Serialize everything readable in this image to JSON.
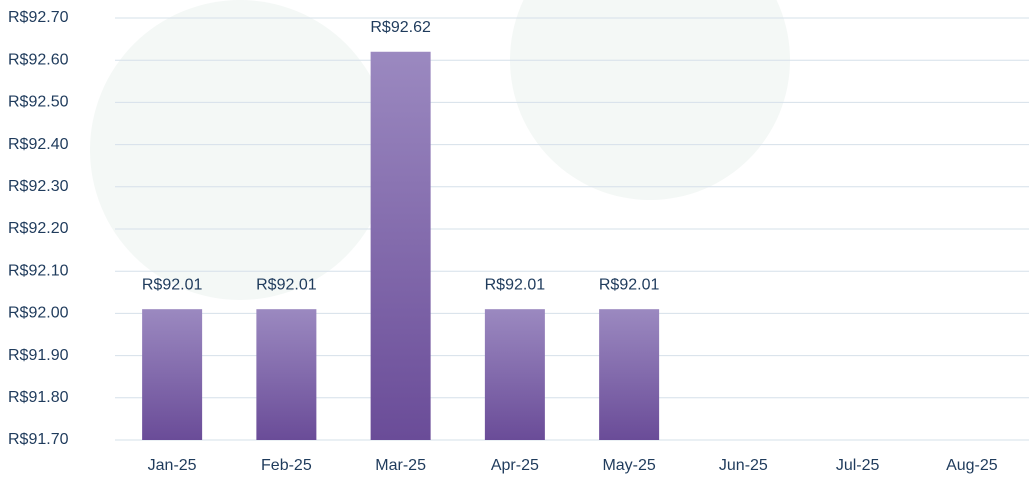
{
  "chart_data": {
    "type": "bar",
    "categories": [
      "Jan-25",
      "Feb-25",
      "Mar-25",
      "Apr-25",
      "May-25",
      "Jun-25",
      "Jul-25",
      "Aug-25"
    ],
    "values": [
      92.01,
      92.01,
      92.62,
      92.01,
      92.01,
      null,
      null,
      null
    ],
    "value_labels": [
      "R$92.01",
      "R$92.01",
      "R$92.62",
      "R$92.01",
      "R$92.01",
      null,
      null,
      null
    ],
    "color": "#7a5ea8",
    "ylim": [
      91.7,
      92.7
    ],
    "yticks": [
      {
        "value": 91.7,
        "label": "R$91.70"
      },
      {
        "value": 91.8,
        "label": "R$91.80"
      },
      {
        "value": 91.9,
        "label": "R$91.90"
      },
      {
        "value": 92.0,
        "label": "R$92.00"
      },
      {
        "value": 92.1,
        "label": "R$92.10"
      },
      {
        "value": 92.2,
        "label": "R$92.20"
      },
      {
        "value": 92.3,
        "label": "R$92.30"
      },
      {
        "value": 92.4,
        "label": "R$92.40"
      },
      {
        "value": 92.5,
        "label": "R$92.50"
      },
      {
        "value": 92.6,
        "label": "R$92.60"
      },
      {
        "value": 92.7,
        "label": "R$92.70"
      }
    ],
    "grid": true
  }
}
